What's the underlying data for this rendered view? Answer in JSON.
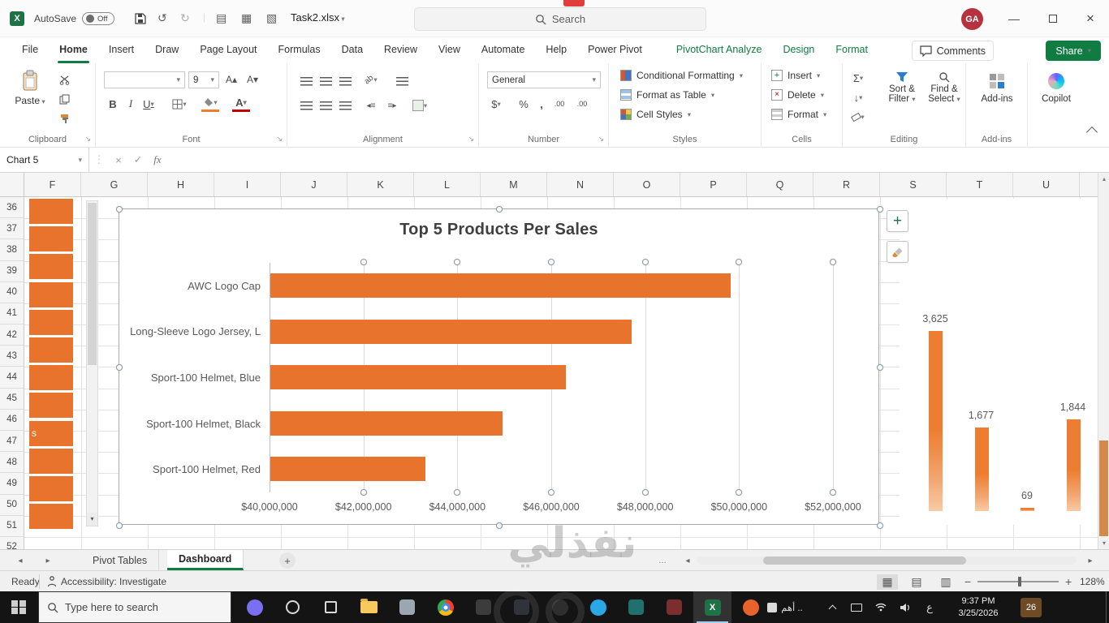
{
  "titlebar": {
    "autosave_label": "AutoSave",
    "autosave_state": "Off",
    "logo_letter": "X",
    "undo_icon": "↺",
    "redo_icon": "↻",
    "qat_icons": [
      "▤",
      "▦",
      "▧"
    ],
    "filename": "Task2.xlsx",
    "search_placeholder": "Search",
    "avatar_initials": "GA"
  },
  "ribbon": {
    "tabs": [
      {
        "label": "File",
        "active": false,
        "contextual": false
      },
      {
        "label": "Home",
        "active": true,
        "contextual": false
      },
      {
        "label": "Insert",
        "active": false,
        "contextual": false
      },
      {
        "label": "Draw",
        "active": false,
        "contextual": false
      },
      {
        "label": "Page Layout",
        "active": false,
        "contextual": false
      },
      {
        "label": "Formulas",
        "active": false,
        "contextual": false
      },
      {
        "label": "Data",
        "active": false,
        "contextual": false
      },
      {
        "label": "Review",
        "active": false,
        "contextual": false
      },
      {
        "label": "View",
        "active": false,
        "contextual": false
      },
      {
        "label": "Automate",
        "active": false,
        "contextual": false
      },
      {
        "label": "Help",
        "active": false,
        "contextual": false
      },
      {
        "label": "Power Pivot",
        "active": false,
        "contextual": false
      },
      {
        "label": "PivotChart Analyze",
        "active": false,
        "contextual": true
      },
      {
        "label": "Design",
        "active": false,
        "contextual": true
      },
      {
        "label": "Format",
        "active": false,
        "contextual": true
      }
    ],
    "comments_label": "Comments",
    "share_label": "Share",
    "clipboard": {
      "paste_label": "Paste",
      "group_label": "Clipboard"
    },
    "font": {
      "group_label": "Font",
      "size": "9",
      "bold": "B",
      "italic": "I",
      "underline": "U",
      "color_letter": "A"
    },
    "alignment": {
      "group_label": "Alignment",
      "orientation": "ab"
    },
    "number": {
      "group_label": "Number",
      "format": "General",
      "currency": "$",
      "percent": "%",
      "comma": ",",
      "dec_inc": ".00",
      "dec_dec": ".00"
    },
    "styles": {
      "group_label": "Styles",
      "items": [
        "Conditional Formatting",
        "Format as Table",
        "Cell Styles"
      ]
    },
    "cells": {
      "group_label": "Cells",
      "items": [
        "Insert",
        "Delete",
        "Format"
      ]
    },
    "editing": {
      "group_label": "Editing",
      "sigma": "Σ",
      "fill": "↓",
      "sort_label": "Sort & Filter",
      "find_label": "Find & Select"
    },
    "addins_label": "Add-ins",
    "copilot_label": "Copilot"
  },
  "formula_bar": {
    "name_box": "Chart 5",
    "cancel": "×",
    "enter": "✓",
    "fx": "fx",
    "value": ""
  },
  "grid": {
    "columns": [
      "F",
      "G",
      "H",
      "I",
      "J",
      "K",
      "L",
      "M",
      "N",
      "O",
      "P",
      "Q",
      "R",
      "S",
      "T",
      "U"
    ],
    "rows": [
      "36",
      "37",
      "38",
      "39",
      "40",
      "41",
      "42",
      "43",
      "44",
      "45",
      "46",
      "47",
      "48",
      "49",
      "50",
      "51",
      "52"
    ],
    "stray_label": "s",
    "background_bar_count": 12,
    "background_bar_color": "#E8732C"
  },
  "chart_data": [
    {
      "type": "bar",
      "orientation": "horizontal",
      "title": "Top 5 Products Per Sales",
      "categories": [
        "AWC Logo Cap",
        "Long-Sleeve Logo Jersey, L",
        "Sport-100 Helmet, Blue",
        "Sport-100 Helmet, Black",
        "Sport-100 Helmet, Red"
      ],
      "values": [
        49800000,
        47700000,
        46300000,
        44950000,
        43300000
      ],
      "xlim": [
        40000000,
        52000000
      ],
      "x_ticks": [
        "$40,000,000",
        "$42,000,000",
        "$44,000,000",
        "$46,000,000",
        "$48,000,000",
        "$50,000,000",
        "$52,000,000"
      ],
      "bar_color": "#E8732C",
      "grid": true,
      "selected": true
    },
    {
      "type": "bar",
      "orientation": "vertical",
      "values": [
        3625,
        1677,
        69,
        1844
      ],
      "data_labels": [
        "3,625",
        "1,677",
        "69",
        "1,844"
      ],
      "ymax": 3625,
      "bar_color": "#ED7D31"
    }
  ],
  "sheet_tabs": {
    "tabs": [
      "Pivot Tables",
      "Dashboard"
    ],
    "active": "Dashboard",
    "add_label": "+",
    "more": "…"
  },
  "status_bar": {
    "ready": "Ready",
    "accessibility": "Accessibility: Investigate",
    "zoom_out": "−",
    "zoom_in": "+",
    "zoom_level": "128%"
  },
  "taskbar": {
    "search_placeholder": "Type here to search",
    "tray_window_title": "أهم ..",
    "language_indicator": "ع",
    "time": "9:37 PM",
    "date": "3/25/2026",
    "notification_count": "26",
    "pinned": [
      {
        "name": "copilot-icon",
        "shape": "circle",
        "color": "#7a6ff0",
        "active": false
      },
      {
        "name": "cortana-icon",
        "shape": "ring",
        "color": "#d9d9d9",
        "active": false
      },
      {
        "name": "task-view-icon",
        "shape": "outline",
        "color": "#d9d9d9",
        "active": false
      },
      {
        "name": "file-explorer-icon",
        "shape": "folder",
        "color": "#F8C95C",
        "active": false
      },
      {
        "name": "app-icon",
        "shape": "square",
        "color": "#9AA7B0",
        "active": false
      },
      {
        "name": "chrome-icon",
        "shape": "chrome",
        "color": "#EA4335",
        "active": false
      },
      {
        "name": "app-icon",
        "shape": "square",
        "color": "#3C3C3C",
        "active": false
      },
      {
        "name": "app-icon",
        "shape": "square",
        "color": "#30343A",
        "active": false
      },
      {
        "name": "app-icon",
        "shape": "circle",
        "color": "#2E2E2E",
        "active": false
      },
      {
        "name": "edge-icon",
        "shape": "circle",
        "color": "#2AA7E7",
        "active": false
      },
      {
        "name": "app-icon",
        "shape": "square",
        "color": "#20706E",
        "active": false
      },
      {
        "name": "app-icon",
        "shape": "square",
        "color": "#7A2E2E",
        "active": false
      },
      {
        "name": "excel-icon",
        "shape": "excel",
        "color": "#1E7245",
        "active": true
      },
      {
        "name": "app-icon",
        "shape": "circle",
        "color": "#E8622C",
        "active": false
      }
    ]
  },
  "watermark": {
    "text": "نفذلي"
  }
}
